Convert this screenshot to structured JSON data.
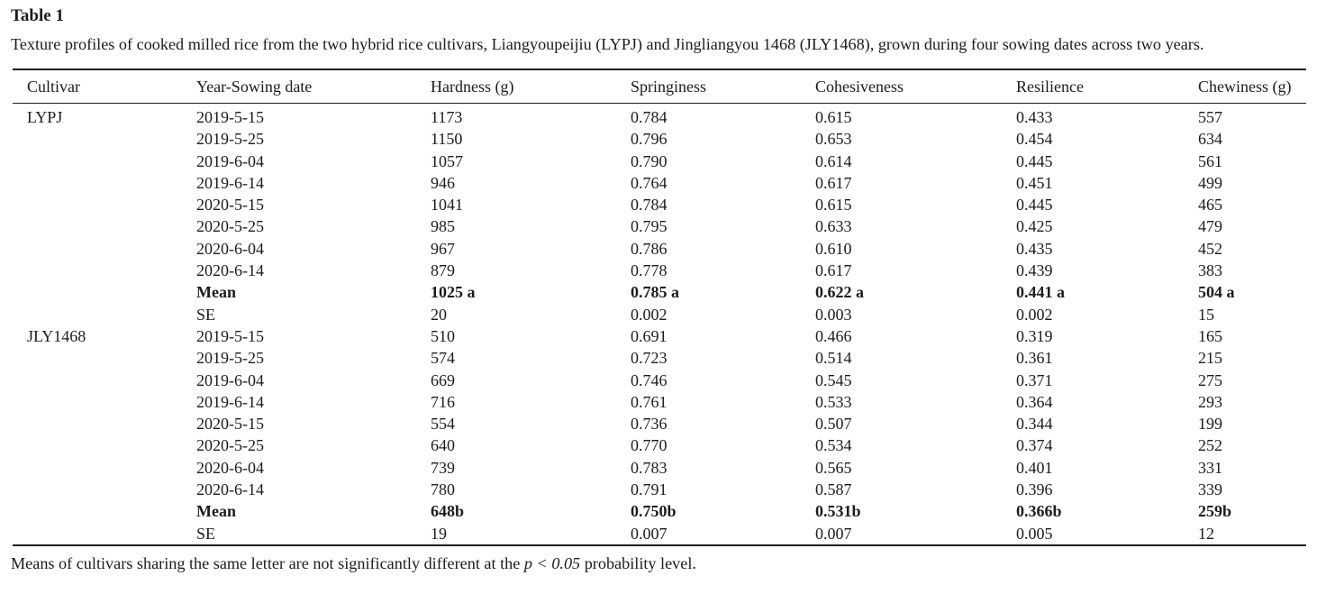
{
  "page": {
    "title": "Table 1",
    "caption": "Texture profiles of cooked milled rice from the two hybrid rice cultivars, Liangyoupeijiu (LYPJ) and Jingliangyou 1468 (JLY1468), grown during four sowing dates across two years.",
    "footnote": {
      "prefix": "Means of cultivars sharing the same letter are not significantly different at the ",
      "italic": "p < 0.05",
      "suffix": " probability level."
    }
  },
  "table": {
    "columns": [
      "Cultivar",
      "Year-Sowing date",
      "Hardness (g)",
      "Springiness",
      "Cohesiveness",
      "Resilience",
      "Chewiness (g)"
    ],
    "rows": [
      {
        "bold": false,
        "cells": [
          "LYPJ",
          "2019-5-15",
          "1173",
          "0.784",
          "0.615",
          "0.433",
          "557"
        ]
      },
      {
        "bold": false,
        "cells": [
          "",
          "2019-5-25",
          "1150",
          "0.796",
          "0.653",
          "0.454",
          "634"
        ]
      },
      {
        "bold": false,
        "cells": [
          "",
          "2019-6-04",
          "1057",
          "0.790",
          "0.614",
          "0.445",
          "561"
        ]
      },
      {
        "bold": false,
        "cells": [
          "",
          "2019-6-14",
          "946",
          "0.764",
          "0.617",
          "0.451",
          "499"
        ]
      },
      {
        "bold": false,
        "cells": [
          "",
          "2020-5-15",
          "1041",
          "0.784",
          "0.615",
          "0.445",
          "465"
        ]
      },
      {
        "bold": false,
        "cells": [
          "",
          "2020-5-25",
          "985",
          "0.795",
          "0.633",
          "0.425",
          "479"
        ]
      },
      {
        "bold": false,
        "cells": [
          "",
          "2020-6-04",
          "967",
          "0.786",
          "0.610",
          "0.435",
          "452"
        ]
      },
      {
        "bold": false,
        "cells": [
          "",
          "2020-6-14",
          "879",
          "0.778",
          "0.617",
          "0.439",
          "383"
        ]
      },
      {
        "bold": true,
        "cells": [
          "",
          "Mean",
          "1025 a",
          "0.785 a",
          "0.622 a",
          "0.441 a",
          "504 a"
        ]
      },
      {
        "bold": false,
        "cells": [
          "",
          "SE",
          "20",
          "0.002",
          "0.003",
          "0.002",
          "15"
        ]
      },
      {
        "bold": false,
        "cells": [
          "JLY1468",
          "2019-5-15",
          "510",
          "0.691",
          "0.466",
          "0.319",
          "165"
        ]
      },
      {
        "bold": false,
        "cells": [
          "",
          "2019-5-25",
          "574",
          "0.723",
          "0.514",
          "0.361",
          "215"
        ]
      },
      {
        "bold": false,
        "cells": [
          "",
          "2019-6-04",
          "669",
          "0.746",
          "0.545",
          "0.371",
          "275"
        ]
      },
      {
        "bold": false,
        "cells": [
          "",
          "2019-6-14",
          "716",
          "0.761",
          "0.533",
          "0.364",
          "293"
        ]
      },
      {
        "bold": false,
        "cells": [
          "",
          "2020-5-15",
          "554",
          "0.736",
          "0.507",
          "0.344",
          "199"
        ]
      },
      {
        "bold": false,
        "cells": [
          "",
          "2020-5-25",
          "640",
          "0.770",
          "0.534",
          "0.374",
          "252"
        ]
      },
      {
        "bold": false,
        "cells": [
          "",
          "2020-6-04",
          "739",
          "0.783",
          "0.565",
          "0.401",
          "331"
        ]
      },
      {
        "bold": false,
        "cells": [
          "",
          "2020-6-14",
          "780",
          "0.791",
          "0.587",
          "0.396",
          "339"
        ]
      },
      {
        "bold": true,
        "cells": [
          "",
          "Mean",
          "648b",
          "0.750b",
          "0.531b",
          "0.366b",
          "259b"
        ]
      },
      {
        "bold": false,
        "cells": [
          "",
          "SE",
          "19",
          "0.007",
          "0.007",
          "0.005",
          "12"
        ]
      }
    ]
  },
  "colors": {
    "text": "#1c1c1c",
    "rule": "#1c1c1c",
    "background": "#ffffff"
  }
}
